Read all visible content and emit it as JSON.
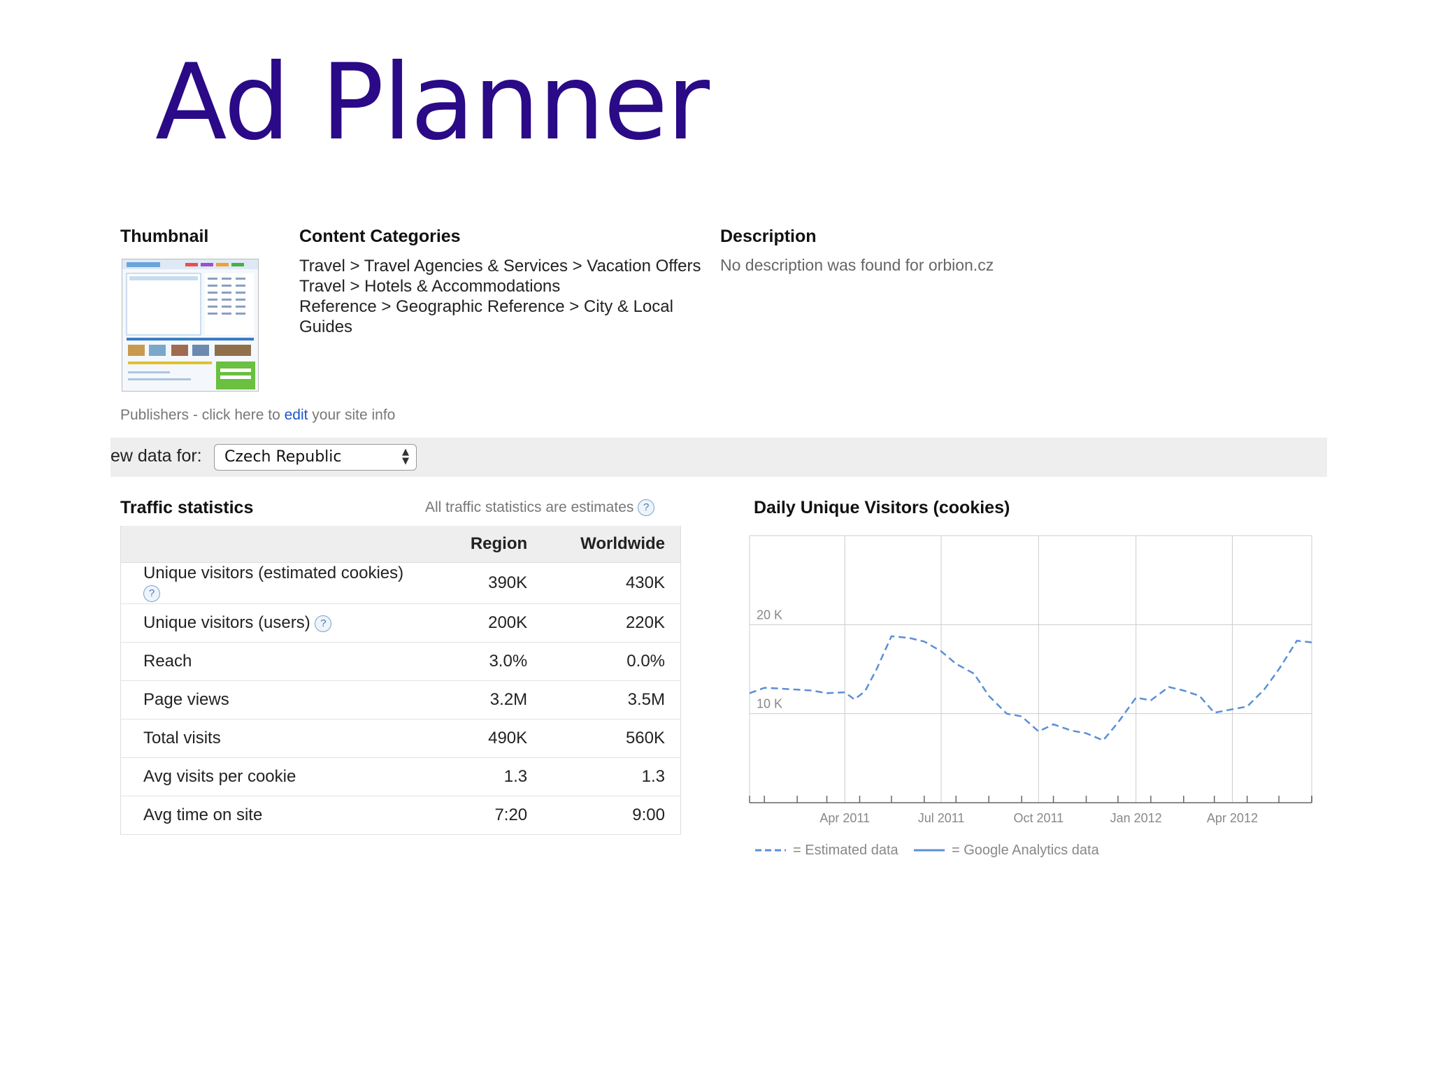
{
  "slide": {
    "title": "Ad Planner"
  },
  "thumbnail": {
    "header": "Thumbnail"
  },
  "categories": {
    "header": "Content Categories",
    "items": [
      "Travel > Travel Agencies & Services > Vacation Offers",
      "Travel > Hotels & Accommodations",
      "Reference > Geographic Reference > City & Local Guides"
    ]
  },
  "description": {
    "header": "Description",
    "text": "No description was found for orbion.cz"
  },
  "publishers": {
    "prefix": "Publishers - click here to ",
    "link": "edit",
    "suffix": " your site info"
  },
  "viewbar": {
    "label": "ew data for:",
    "selected": "Czech Republic"
  },
  "traffic": {
    "header": "Traffic statistics",
    "note": "All traffic statistics are estimates",
    "columns": [
      "Region",
      "Worldwide"
    ],
    "rows": [
      {
        "label": "Unique visitors (estimated cookies)",
        "region": "390K",
        "worldwide": "430K",
        "help": true
      },
      {
        "label": "Unique visitors (users)",
        "region": "200K",
        "worldwide": "220K",
        "help": true
      },
      {
        "label": "Reach",
        "region": "3.0%",
        "worldwide": "0.0%",
        "help": false
      },
      {
        "label": "Page views",
        "region": "3.2M",
        "worldwide": "3.5M",
        "help": false
      },
      {
        "label": "Total visits",
        "region": "490K",
        "worldwide": "560K",
        "help": false
      },
      {
        "label": "Avg visits per cookie",
        "region": "1.3",
        "worldwide": "1.3",
        "help": false
      },
      {
        "label": "Avg time on site",
        "region": "7:20",
        "worldwide": "9:00",
        "help": false
      }
    ]
  },
  "chart_data": {
    "type": "line",
    "title": "Daily Unique Visitors (cookies)",
    "x_ticks": [
      "Apr 2011",
      "Jul 2011",
      "Oct 2011",
      "Jan 2012",
      "Apr 2012"
    ],
    "y_ticks": [
      {
        "value": 10000,
        "label": "10 K"
      },
      {
        "value": 20000,
        "label": "20 K"
      }
    ],
    "ylim": [
      0,
      30000
    ],
    "xlim": [
      "2011-01-01",
      "2012-06-15"
    ],
    "grid": true,
    "legend_position": "bottom-left",
    "series": [
      {
        "name": "= Estimated data",
        "style": "dashed",
        "color": "#5b8fd6",
        "x": [
          "2011-01-01",
          "2011-01-15",
          "2011-02-01",
          "2011-02-15",
          "2011-03-01",
          "2011-03-15",
          "2011-04-01",
          "2011-04-10",
          "2011-04-20",
          "2011-05-01",
          "2011-05-15",
          "2011-06-01",
          "2011-06-15",
          "2011-07-01",
          "2011-07-15",
          "2011-08-01",
          "2011-08-15",
          "2011-09-01",
          "2011-09-15",
          "2011-10-01",
          "2011-10-15",
          "2011-11-01",
          "2011-11-15",
          "2011-12-01",
          "2011-12-15",
          "2012-01-01",
          "2012-01-15",
          "2012-02-01",
          "2012-02-15",
          "2012-03-01",
          "2012-03-15",
          "2012-04-01",
          "2012-04-15",
          "2012-05-01",
          "2012-05-15",
          "2012-06-01",
          "2012-06-15"
        ],
        "y": [
          12300,
          12900,
          12800,
          12700,
          12600,
          12300,
          12400,
          11600,
          12500,
          15000,
          18700,
          18500,
          18100,
          17000,
          15600,
          14500,
          12000,
          10000,
          9700,
          8000,
          8800,
          8100,
          7800,
          7000,
          9000,
          11800,
          11500,
          13000,
          12600,
          12000,
          10100,
          10500,
          10800,
          12700,
          15000,
          18200,
          18000
        ]
      },
      {
        "name": "= Google Analytics data",
        "style": "solid",
        "color": "#5b8fd6",
        "x": [],
        "y": []
      }
    ]
  }
}
